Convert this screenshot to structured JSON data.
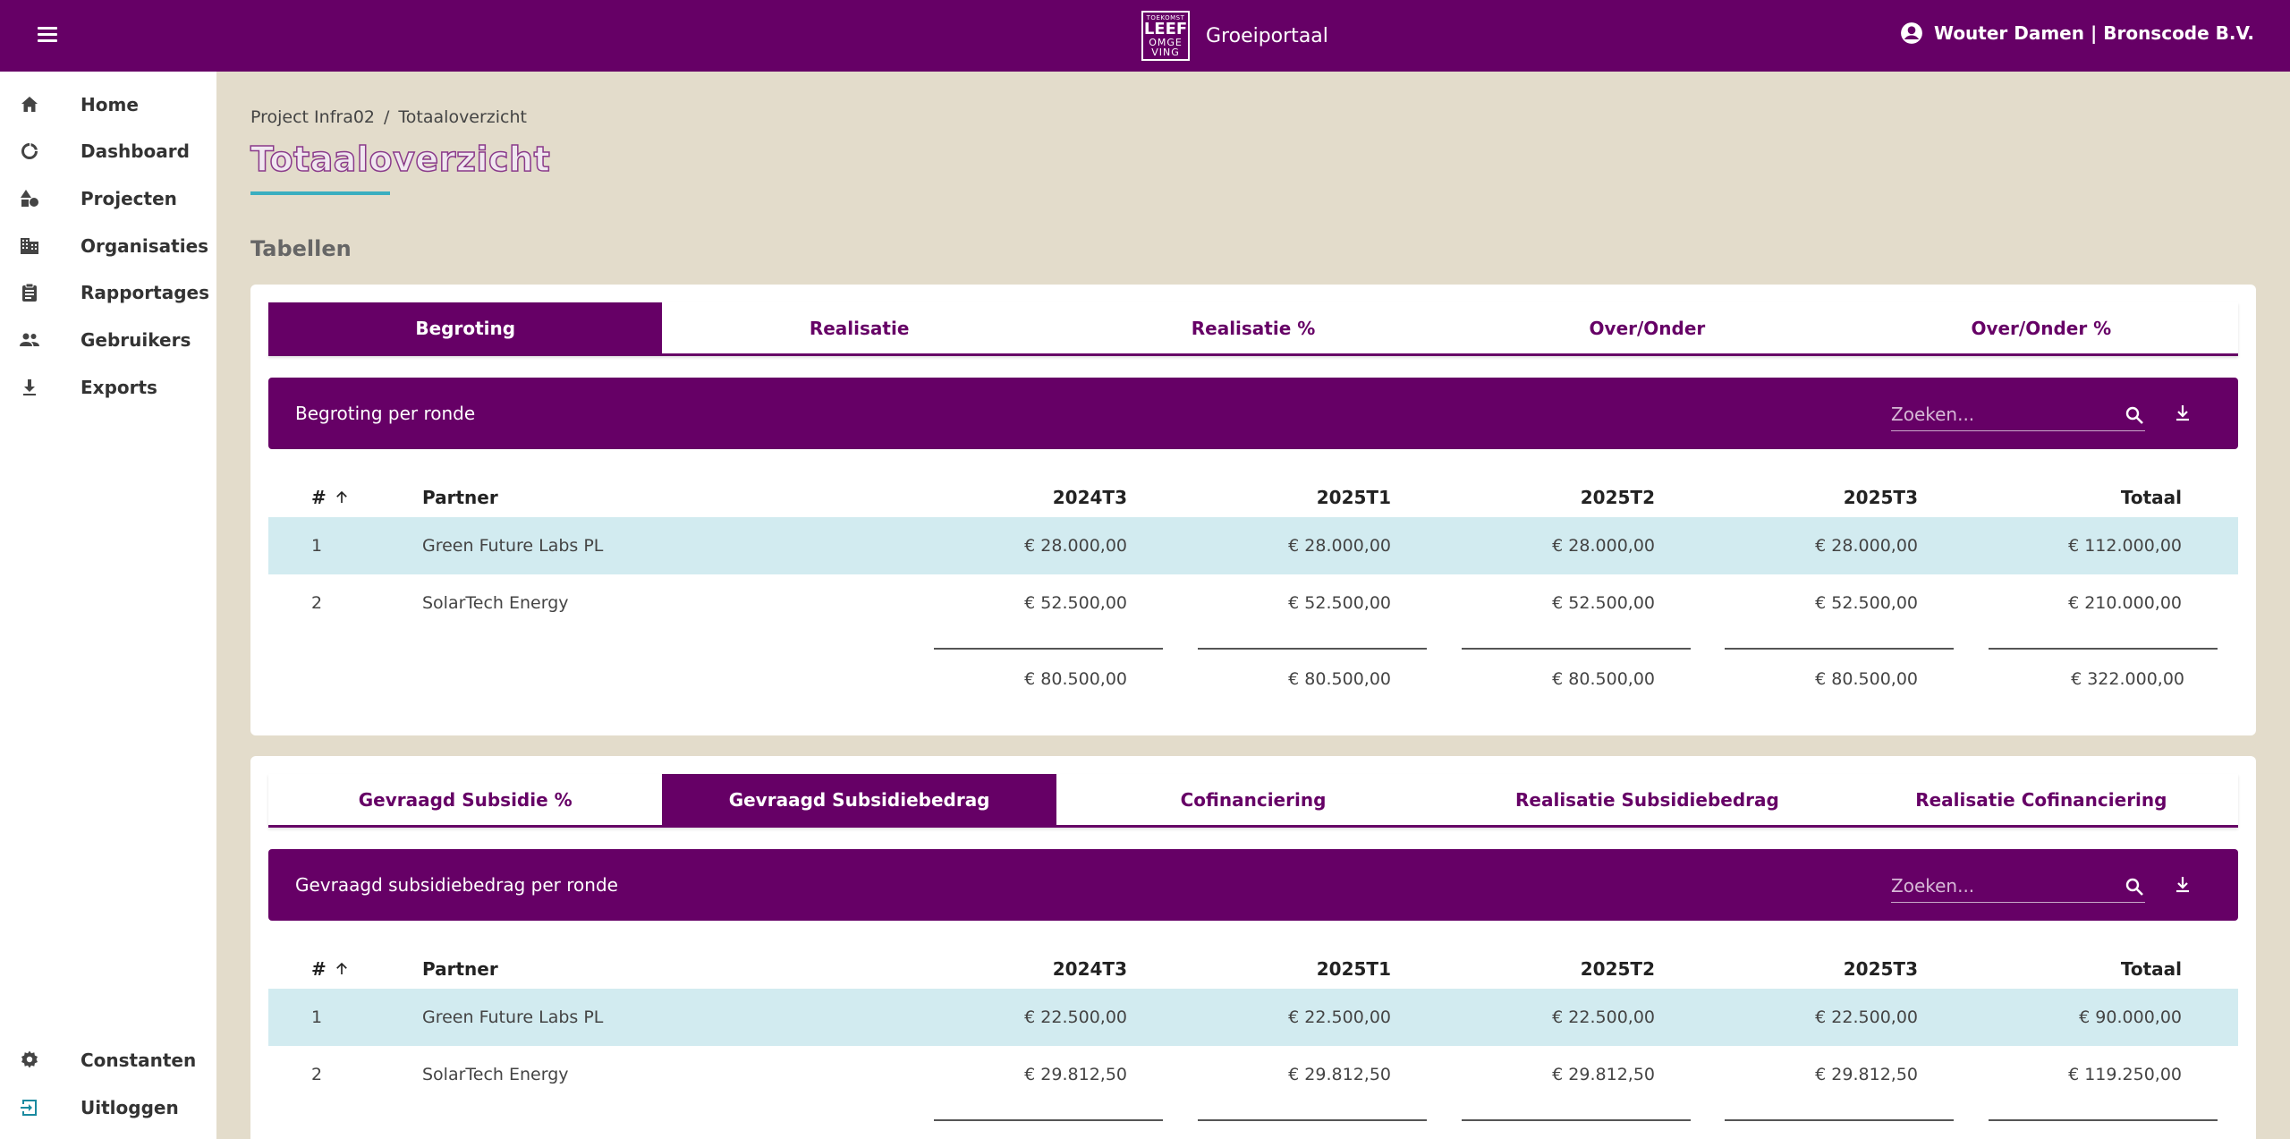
{
  "header": {
    "logo": {
      "line1": "TOEKOMST",
      "line2": "LEEF",
      "line3": "OMGE",
      "line4": "VING"
    },
    "app_name": "Groeiportaal",
    "user": "Wouter Damen | Bronscode B.V."
  },
  "sidebar": {
    "items": [
      {
        "label": "Home",
        "icon": "home-icon"
      },
      {
        "label": "Dashboard",
        "icon": "dashboard-icon"
      },
      {
        "label": "Projecten",
        "icon": "projects-icon"
      },
      {
        "label": "Organisaties",
        "icon": "building-icon"
      },
      {
        "label": "Rapportages",
        "icon": "clipboard-icon"
      },
      {
        "label": "Gebruikers",
        "icon": "users-icon"
      },
      {
        "label": "Exports",
        "icon": "download-icon"
      }
    ],
    "bottom": [
      {
        "label": "Constanten",
        "icon": "gear-icon"
      },
      {
        "label": "Uitloggen",
        "icon": "logout-icon"
      }
    ]
  },
  "breadcrumb": {
    "project": "Project Infra02",
    "separator": "/",
    "current": "Totaaloverzicht"
  },
  "page_title": "Totaaloverzicht",
  "section_title": "Tabellen",
  "columns": {
    "num": "#",
    "partner": "Partner",
    "p1": "2024T3",
    "p2": "2025T1",
    "p3": "2025T2",
    "p4": "2025T3",
    "total": "Totaal"
  },
  "search_placeholder": "Zoeken...",
  "card1": {
    "tabs": [
      {
        "label": "Begroting",
        "active": true
      },
      {
        "label": "Realisatie",
        "active": false
      },
      {
        "label": "Realisatie %",
        "active": false
      },
      {
        "label": "Over/Onder",
        "active": false
      },
      {
        "label": "Over/Onder %",
        "active": false
      }
    ],
    "table_title": "Begroting per ronde",
    "rows": [
      {
        "num": "1",
        "partner": "Green Future Labs PL",
        "values": [
          "€ 28.000,00",
          "€ 28.000,00",
          "€ 28.000,00",
          "€ 28.000,00",
          "€ 112.000,00"
        ]
      },
      {
        "num": "2",
        "partner": "SolarTech Energy",
        "values": [
          "€ 52.500,00",
          "€ 52.500,00",
          "€ 52.500,00",
          "€ 52.500,00",
          "€ 210.000,00"
        ]
      }
    ],
    "totals": [
      "€ 80.500,00",
      "€ 80.500,00",
      "€ 80.500,00",
      "€ 80.500,00",
      "€ 322.000,00"
    ]
  },
  "card2": {
    "tabs": [
      {
        "label": "Gevraagd Subsidie %",
        "active": false
      },
      {
        "label": "Gevraagd Subsidiebedrag",
        "active": true
      },
      {
        "label": "Cofinanciering",
        "active": false
      },
      {
        "label": "Realisatie Subsidiebedrag",
        "active": false
      },
      {
        "label": "Realisatie Cofinanciering",
        "active": false
      }
    ],
    "table_title": "Gevraagd subsidiebedrag per ronde",
    "rows": [
      {
        "num": "1",
        "partner": "Green Future Labs PL",
        "values": [
          "€ 22.500,00",
          "€ 22.500,00",
          "€ 22.500,00",
          "€ 22.500,00",
          "€ 90.000,00"
        ]
      },
      {
        "num": "2",
        "partner": "SolarTech Energy",
        "values": [
          "€ 29.812,50",
          "€ 29.812,50",
          "€ 29.812,50",
          "€ 29.812,50",
          "€ 119.250,00"
        ]
      }
    ]
  },
  "colors": {
    "primary": "#660066",
    "background": "#e3dccb",
    "row_highlight": "#d2ebf0",
    "accent": "#3aaec0"
  }
}
